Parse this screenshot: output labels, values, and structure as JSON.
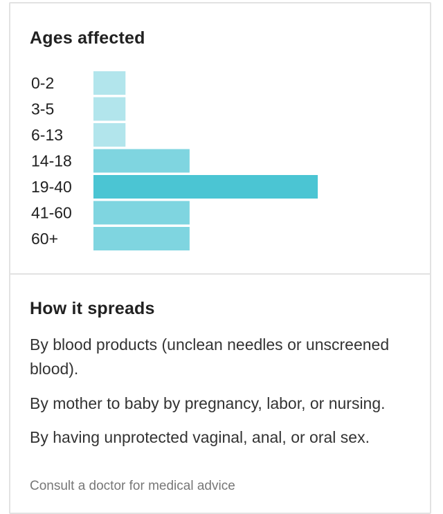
{
  "ages_section": {
    "title": "Ages affected"
  },
  "chart_data": {
    "type": "bar",
    "orientation": "horizontal",
    "categories": [
      "0-2",
      "3-5",
      "6-13",
      "14-18",
      "19-40",
      "41-60",
      "60+"
    ],
    "values": [
      1,
      1,
      1,
      3,
      7,
      3,
      3
    ],
    "colors": [
      "#b2e5ec",
      "#b2e5ec",
      "#b2e5ec",
      "#7fd5e0",
      "#4bc5d3",
      "#7fd5e0",
      "#7fd5e0"
    ]
  },
  "spread_section": {
    "title": "How it spreads",
    "items": [
      "By blood products (unclean needles or unscreened blood).",
      "By mother to baby by pregnancy, labor, or nursing.",
      "By having unprotected vaginal, anal, or oral sex."
    ]
  },
  "footer": {
    "disclaimer": "Consult a doctor for medical advice"
  }
}
